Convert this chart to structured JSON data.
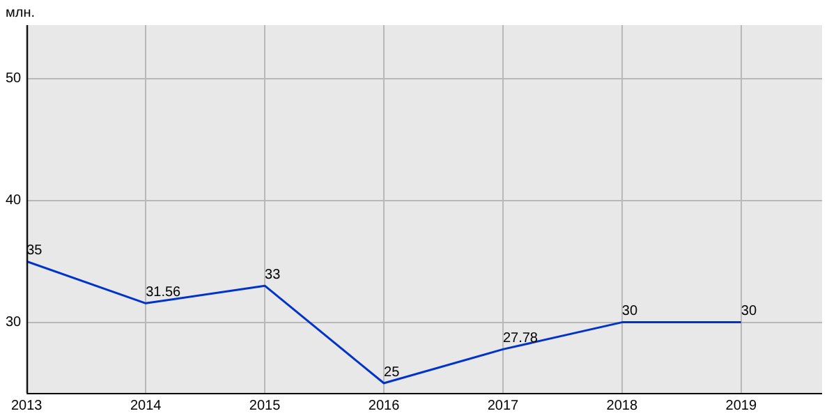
{
  "chart_data": {
    "type": "line",
    "ylabel": "млн.",
    "x": [
      2013,
      2014,
      2015,
      2016,
      2017,
      2018,
      2019
    ],
    "series": [
      {
        "color": "#0033cc",
        "values": [
          35,
          31.56,
          33,
          25,
          27.78,
          30,
          30
        ]
      }
    ],
    "xlim": [
      2013,
      2019.68
    ],
    "xticks": [
      2013,
      2014,
      2015,
      2016,
      2017,
      2018,
      2019
    ],
    "ylim": [
      24.2,
      54.4
    ],
    "yticks": [
      30,
      40,
      50
    ],
    "grid": true,
    "legend": false,
    "data_labels": true,
    "marker": "none",
    "line_style": "solid"
  }
}
